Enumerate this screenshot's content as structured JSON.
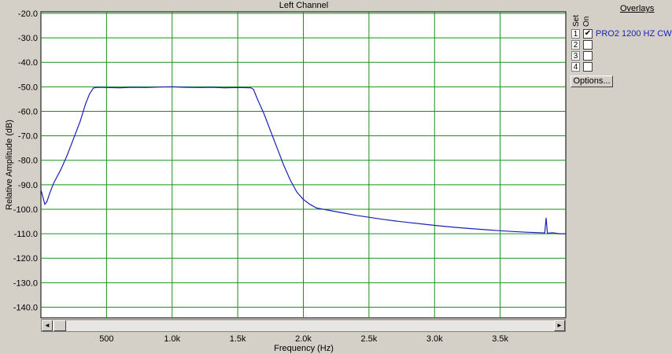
{
  "chart_data": {
    "type": "line",
    "title": "Left Channel",
    "xlabel": "Frequency (Hz)",
    "ylabel": "Relative Amplitude (dB)",
    "xlim": [
      0,
      4000
    ],
    "ylim": [
      -145,
      -20
    ],
    "grid": true,
    "y_ticks": [
      "-20.0",
      "-30.0",
      "-40.0",
      "-50.0",
      "-60.0",
      "-70.0",
      "-80.0",
      "-90.0",
      "-100.0",
      "-110.0",
      "-120.0",
      "-130.0",
      "-140.0"
    ],
    "y_tick_values": [
      -20,
      -30,
      -40,
      -50,
      -60,
      -70,
      -80,
      -90,
      -100,
      -110,
      -120,
      -130,
      -140
    ],
    "x_ticks": [
      "500",
      "1.0k",
      "1.5k",
      "2.0k",
      "2.5k",
      "3.0k",
      "3.5k"
    ],
    "x_tick_values": [
      500,
      1000,
      1500,
      2000,
      2500,
      3000,
      3500
    ],
    "series": [
      {
        "name": "PRO2 1200 HZ CW",
        "color": "#1a22b5",
        "points": [
          [
            0,
            -92
          ],
          [
            15,
            -95
          ],
          [
            30,
            -98
          ],
          [
            45,
            -97
          ],
          [
            70,
            -93
          ],
          [
            100,
            -89
          ],
          [
            150,
            -84
          ],
          [
            200,
            -78
          ],
          [
            250,
            -71
          ],
          [
            300,
            -64
          ],
          [
            340,
            -57
          ],
          [
            370,
            -53
          ],
          [
            400,
            -50.5
          ],
          [
            430,
            -50.2
          ],
          [
            500,
            -50.3
          ],
          [
            600,
            -50.4
          ],
          [
            700,
            -50.2
          ],
          [
            800,
            -50.3
          ],
          [
            900,
            -50.1
          ],
          [
            1000,
            -50.0
          ],
          [
            1100,
            -50.2
          ],
          [
            1200,
            -50.3
          ],
          [
            1300,
            -50.2
          ],
          [
            1400,
            -50.4
          ],
          [
            1500,
            -50.3
          ],
          [
            1600,
            -50.4
          ],
          [
            1620,
            -51
          ],
          [
            1650,
            -55
          ],
          [
            1700,
            -61
          ],
          [
            1750,
            -68
          ],
          [
            1800,
            -75
          ],
          [
            1850,
            -82
          ],
          [
            1900,
            -88
          ],
          [
            1950,
            -93
          ],
          [
            2000,
            -96
          ],
          [
            2050,
            -98
          ],
          [
            2100,
            -99.5
          ],
          [
            2200,
            -100.5
          ],
          [
            2300,
            -101.5
          ],
          [
            2400,
            -102.5
          ],
          [
            2500,
            -103.3
          ],
          [
            2600,
            -104.1
          ],
          [
            2700,
            -104.8
          ],
          [
            2800,
            -105.4
          ],
          [
            2900,
            -106
          ],
          [
            3000,
            -106.6
          ],
          [
            3100,
            -107.1
          ],
          [
            3200,
            -107.6
          ],
          [
            3300,
            -108
          ],
          [
            3400,
            -108.4
          ],
          [
            3500,
            -108.8
          ],
          [
            3600,
            -109.1
          ],
          [
            3700,
            -109.4
          ],
          [
            3800,
            -109.6
          ],
          [
            3840,
            -109.7
          ],
          [
            3850,
            -103.5
          ],
          [
            3860,
            -109.8
          ],
          [
            3900,
            -109.6
          ],
          [
            3950,
            -110
          ],
          [
            4000,
            -110
          ]
        ]
      }
    ]
  },
  "overlays": {
    "title": "Overlays",
    "col_set": "Set",
    "col_on": "On",
    "rows": [
      {
        "num": "1",
        "checked": true,
        "name": "PRO2 1200 HZ CW"
      },
      {
        "num": "2",
        "checked": false,
        "name": ""
      },
      {
        "num": "3",
        "checked": false,
        "name": ""
      },
      {
        "num": "4",
        "checked": false,
        "name": ""
      }
    ],
    "options_label": "Options..."
  },
  "scrollbar": {
    "left_arrow": "◄",
    "right_arrow": "►"
  }
}
